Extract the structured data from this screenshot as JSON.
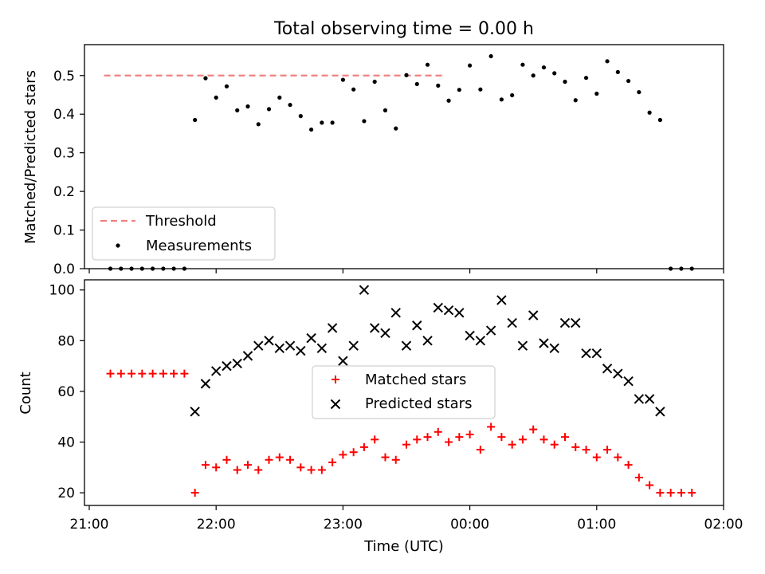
{
  "title": "Total observing time = 0.00 h",
  "chart_data": [
    {
      "type": "scatter",
      "ylabel": "Matched/Predicted stars",
      "xlim": [
        "21:00",
        "02:00"
      ],
      "ylim": [
        0,
        0.58
      ],
      "yticks": [
        0.0,
        0.1,
        0.2,
        0.3,
        0.4,
        0.5
      ],
      "ytick_labels": [
        "0.0",
        "0.1",
        "0.2",
        "0.3",
        "0.4",
        "0.5"
      ],
      "legend_location": "lower left",
      "threshold": {
        "name": "Threshold",
        "value": 0.5,
        "x_range": [
          "21:07",
          "23:47"
        ],
        "color": "#f08080",
        "style": "dashed"
      },
      "series": [
        {
          "name": "Measurements",
          "color": "#000000",
          "marker": "dot",
          "x": [
            "21:10",
            "21:15",
            "21:20",
            "21:25",
            "21:30",
            "21:35",
            "21:40",
            "21:45",
            "21:50",
            "21:55",
            "22:00",
            "22:05",
            "22:10",
            "22:15",
            "22:20",
            "22:25",
            "22:30",
            "22:35",
            "22:40",
            "22:45",
            "22:50",
            "22:55",
            "23:00",
            "23:05",
            "23:10",
            "23:15",
            "23:20",
            "23:25",
            "23:30",
            "23:35",
            "23:40",
            "23:45",
            "23:50",
            "23:55",
            "00:00",
            "00:05",
            "00:10",
            "00:15",
            "00:20",
            "00:25",
            "00:30",
            "00:35",
            "00:40",
            "00:45",
            "00:50",
            "00:55",
            "01:00",
            "01:05",
            "01:10",
            "01:15",
            "01:20",
            "01:25",
            "01:30",
            "01:35",
            "01:40",
            "01:45"
          ],
          "y": [
            0,
            0,
            0,
            0,
            0,
            0,
            0,
            0,
            0.385,
            0.493,
            0.443,
            0.472,
            0.41,
            0.42,
            0.374,
            0.413,
            0.443,
            0.424,
            0.395,
            0.36,
            0.378,
            0.378,
            0.489,
            0.464,
            0.382,
            0.484,
            0.41,
            0.363,
            0.501,
            0.478,
            0.528,
            0.474,
            0.435,
            0.463,
            0.526,
            0.464,
            0.55,
            0.438,
            0.449,
            0.528,
            0.5,
            0.521,
            0.506,
            0.484,
            0.436,
            0.494,
            0.453,
            0.537,
            0.509,
            0.486,
            0.457,
            0.404,
            0.385,
            0,
            0,
            0
          ]
        }
      ]
    },
    {
      "type": "scatter",
      "xlabel": "Time (UTC)",
      "ylabel": "Count",
      "xlim": [
        "21:00",
        "02:00"
      ],
      "xticks": [
        "21:00",
        "22:00",
        "23:00",
        "00:00",
        "01:00",
        "02:00"
      ],
      "ylim": [
        15,
        104
      ],
      "yticks": [
        20,
        40,
        60,
        80,
        100
      ],
      "legend_location": "center",
      "x": [
        "21:10",
        "21:15",
        "21:20",
        "21:25",
        "21:30",
        "21:35",
        "21:40",
        "21:45",
        "21:50",
        "21:55",
        "22:00",
        "22:05",
        "22:10",
        "22:15",
        "22:20",
        "22:25",
        "22:30",
        "22:35",
        "22:40",
        "22:45",
        "22:50",
        "22:55",
        "23:00",
        "23:05",
        "23:10",
        "23:15",
        "23:20",
        "23:25",
        "23:30",
        "23:35",
        "23:40",
        "23:45",
        "23:50",
        "23:55",
        "00:00",
        "00:05",
        "00:10",
        "00:15",
        "00:20",
        "00:25",
        "00:30",
        "00:35",
        "00:40",
        "00:45",
        "00:50",
        "00:55",
        "01:00",
        "01:05",
        "01:10",
        "01:15",
        "01:20",
        "01:25",
        "01:30",
        "01:35",
        "01:40",
        "01:45"
      ],
      "series": [
        {
          "name": "Matched stars",
          "color": "#ff0000",
          "marker": "plus",
          "values": [
            67,
            67,
            67,
            67,
            67,
            67,
            67,
            67,
            20,
            31,
            30,
            33,
            29,
            31,
            29,
            33,
            34,
            33,
            30,
            29,
            29,
            32,
            35,
            36,
            38,
            41,
            34,
            33,
            39,
            41,
            42,
            44,
            40,
            42,
            43,
            37,
            46,
            42,
            39,
            41,
            45,
            41,
            39,
            42,
            38,
            37,
            34,
            37,
            34,
            31,
            26,
            23,
            20,
            20,
            20,
            20
          ]
        },
        {
          "name": "Predicted stars",
          "color": "#000000",
          "marker": "x",
          "values": [
            null,
            null,
            null,
            null,
            null,
            null,
            null,
            null,
            52,
            63,
            68,
            70,
            71,
            74,
            78,
            80,
            77,
            78,
            76,
            81,
            77,
            85,
            72,
            78,
            100,
            85,
            83,
            91,
            78,
            86,
            80,
            93,
            92,
            91,
            82,
            80,
            84,
            96,
            87,
            78,
            90,
            79,
            77,
            87,
            87,
            75,
            75,
            69,
            67,
            64,
            57,
            57,
            52,
            null,
            null,
            null
          ]
        }
      ]
    }
  ]
}
